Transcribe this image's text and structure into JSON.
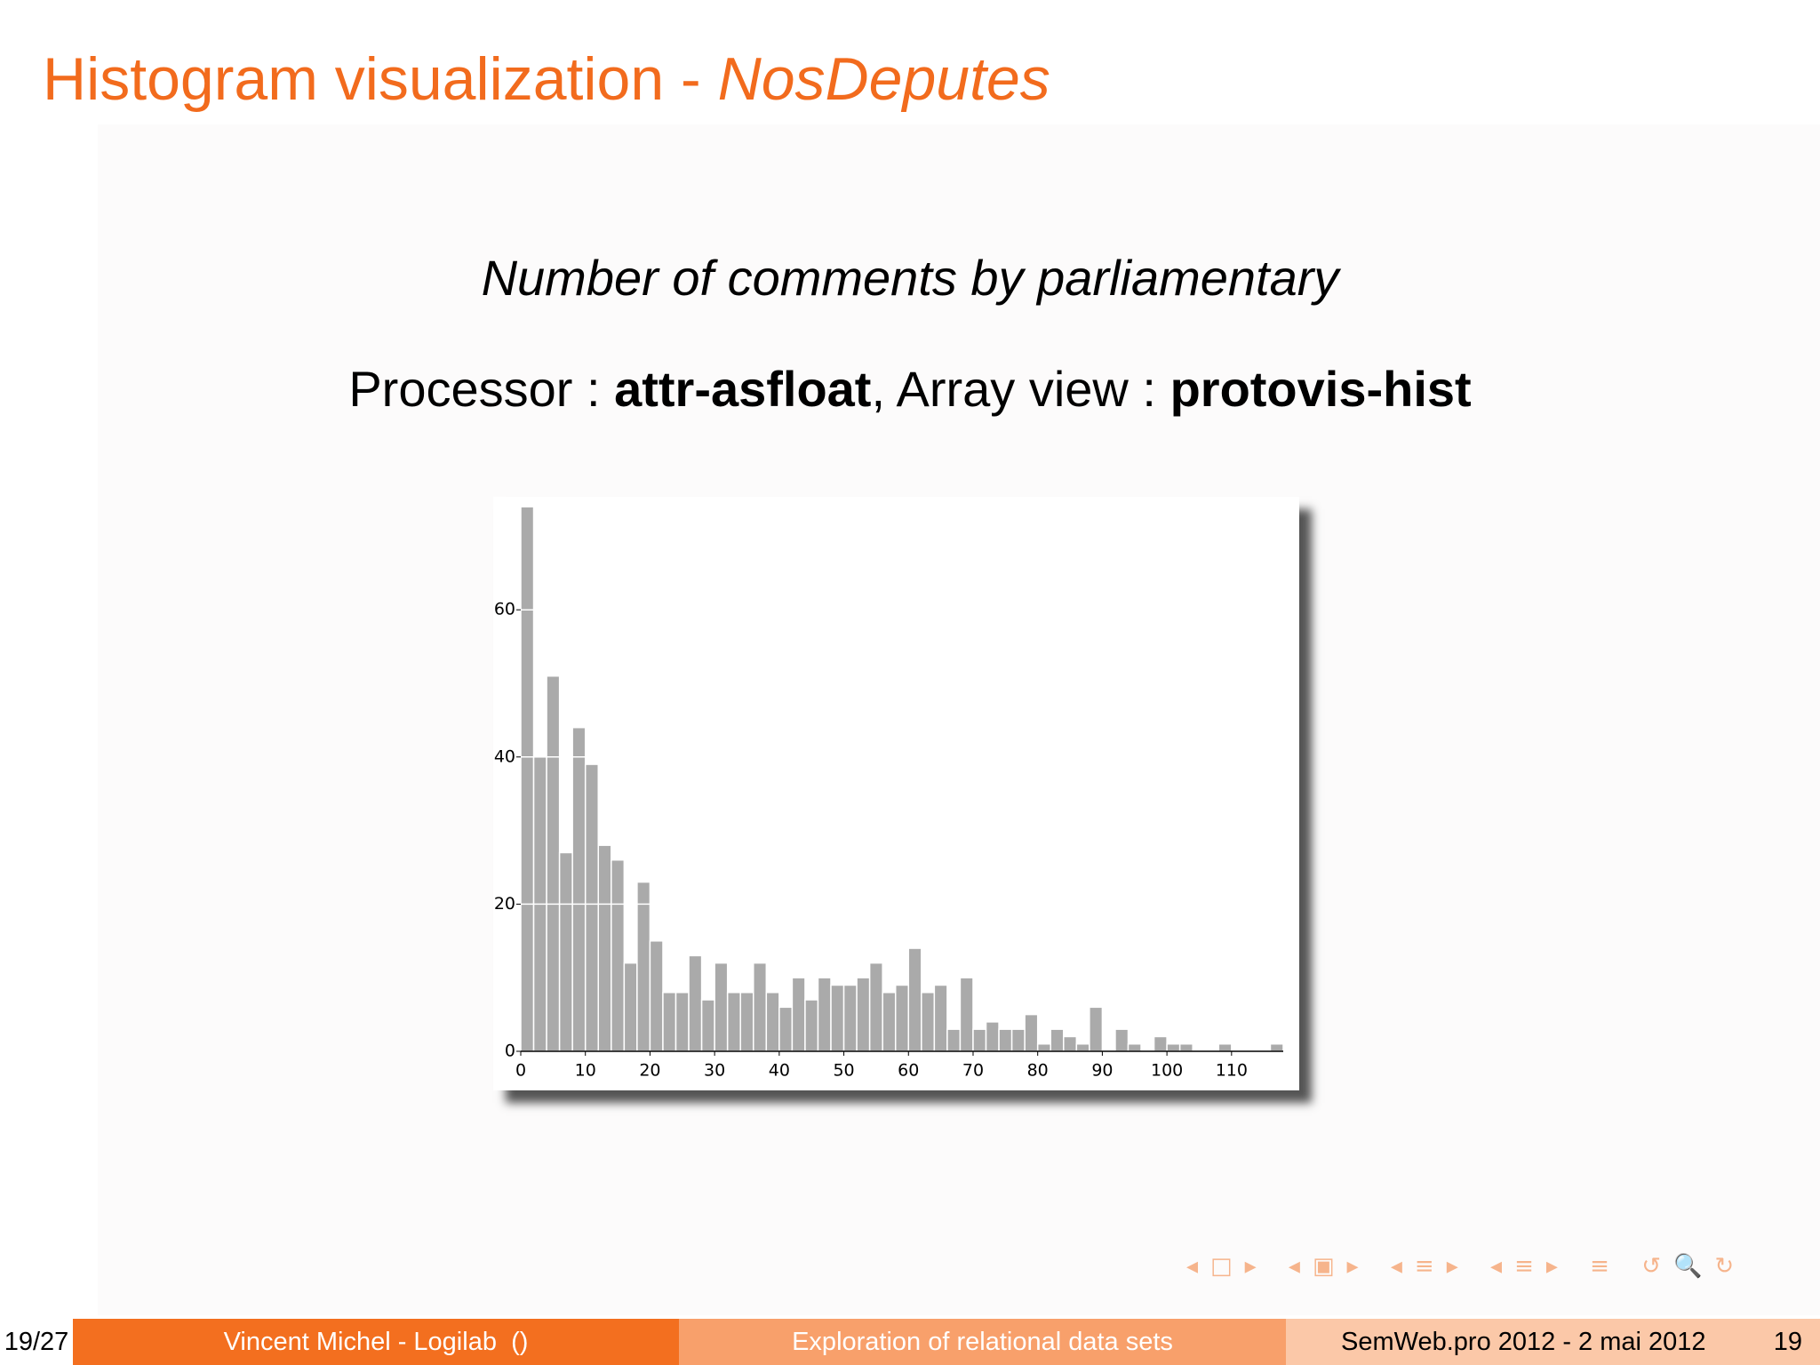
{
  "slide": {
    "title": [
      "Histogram visualization - ",
      "NosDeputes"
    ],
    "subtitle": "Number of comments by parliamentary",
    "processor_line": [
      "Processor : ",
      "attr-asfloat",
      ", Array view : ",
      "protovis-hist"
    ],
    "footer": [
      "19/27",
      "Vincent Michel - Logilab  ()",
      "Exploration of relational data sets",
      "SemWeb.pro 2012 - 2 mai 2012",
      "19"
    ]
  },
  "chart_data": {
    "type": "histogram",
    "bins": [
      0,
      2,
      4,
      6,
      8,
      10,
      12,
      14,
      16,
      18,
      20,
      22,
      24,
      26,
      28,
      30,
      32,
      34,
      36,
      38,
      40,
      42,
      44,
      46,
      48,
      50,
      52,
      54,
      56,
      58,
      60,
      62,
      64,
      66,
      68,
      70,
      72,
      74,
      76,
      78,
      80,
      82,
      84,
      86,
      88,
      90,
      92,
      94,
      96,
      98,
      100,
      102,
      104,
      106,
      108,
      110,
      112,
      114,
      116,
      118
    ],
    "values": [
      74,
      40,
      51,
      27,
      44,
      39,
      28,
      26,
      12,
      23,
      15,
      8,
      8,
      13,
      7,
      12,
      8,
      8,
      12,
      8,
      6,
      10,
      7,
      10,
      9,
      9,
      10,
      12,
      8,
      9,
      14,
      8,
      9,
      3,
      10,
      3,
      4,
      3,
      3,
      5,
      1,
      3,
      2,
      1,
      6,
      0,
      3,
      1,
      0,
      2,
      1,
      1,
      0,
      0,
      1,
      0,
      0,
      0,
      1
    ],
    "color": "#aaaaaa",
    "xlim": [
      0,
      118
    ],
    "xticks": [
      0,
      10,
      20,
      30,
      40,
      50,
      60,
      70,
      80,
      90,
      100,
      110
    ],
    "ylim": [
      0,
      75
    ],
    "yticks": [
      0,
      20,
      40,
      60
    ],
    "grid": true
  }
}
